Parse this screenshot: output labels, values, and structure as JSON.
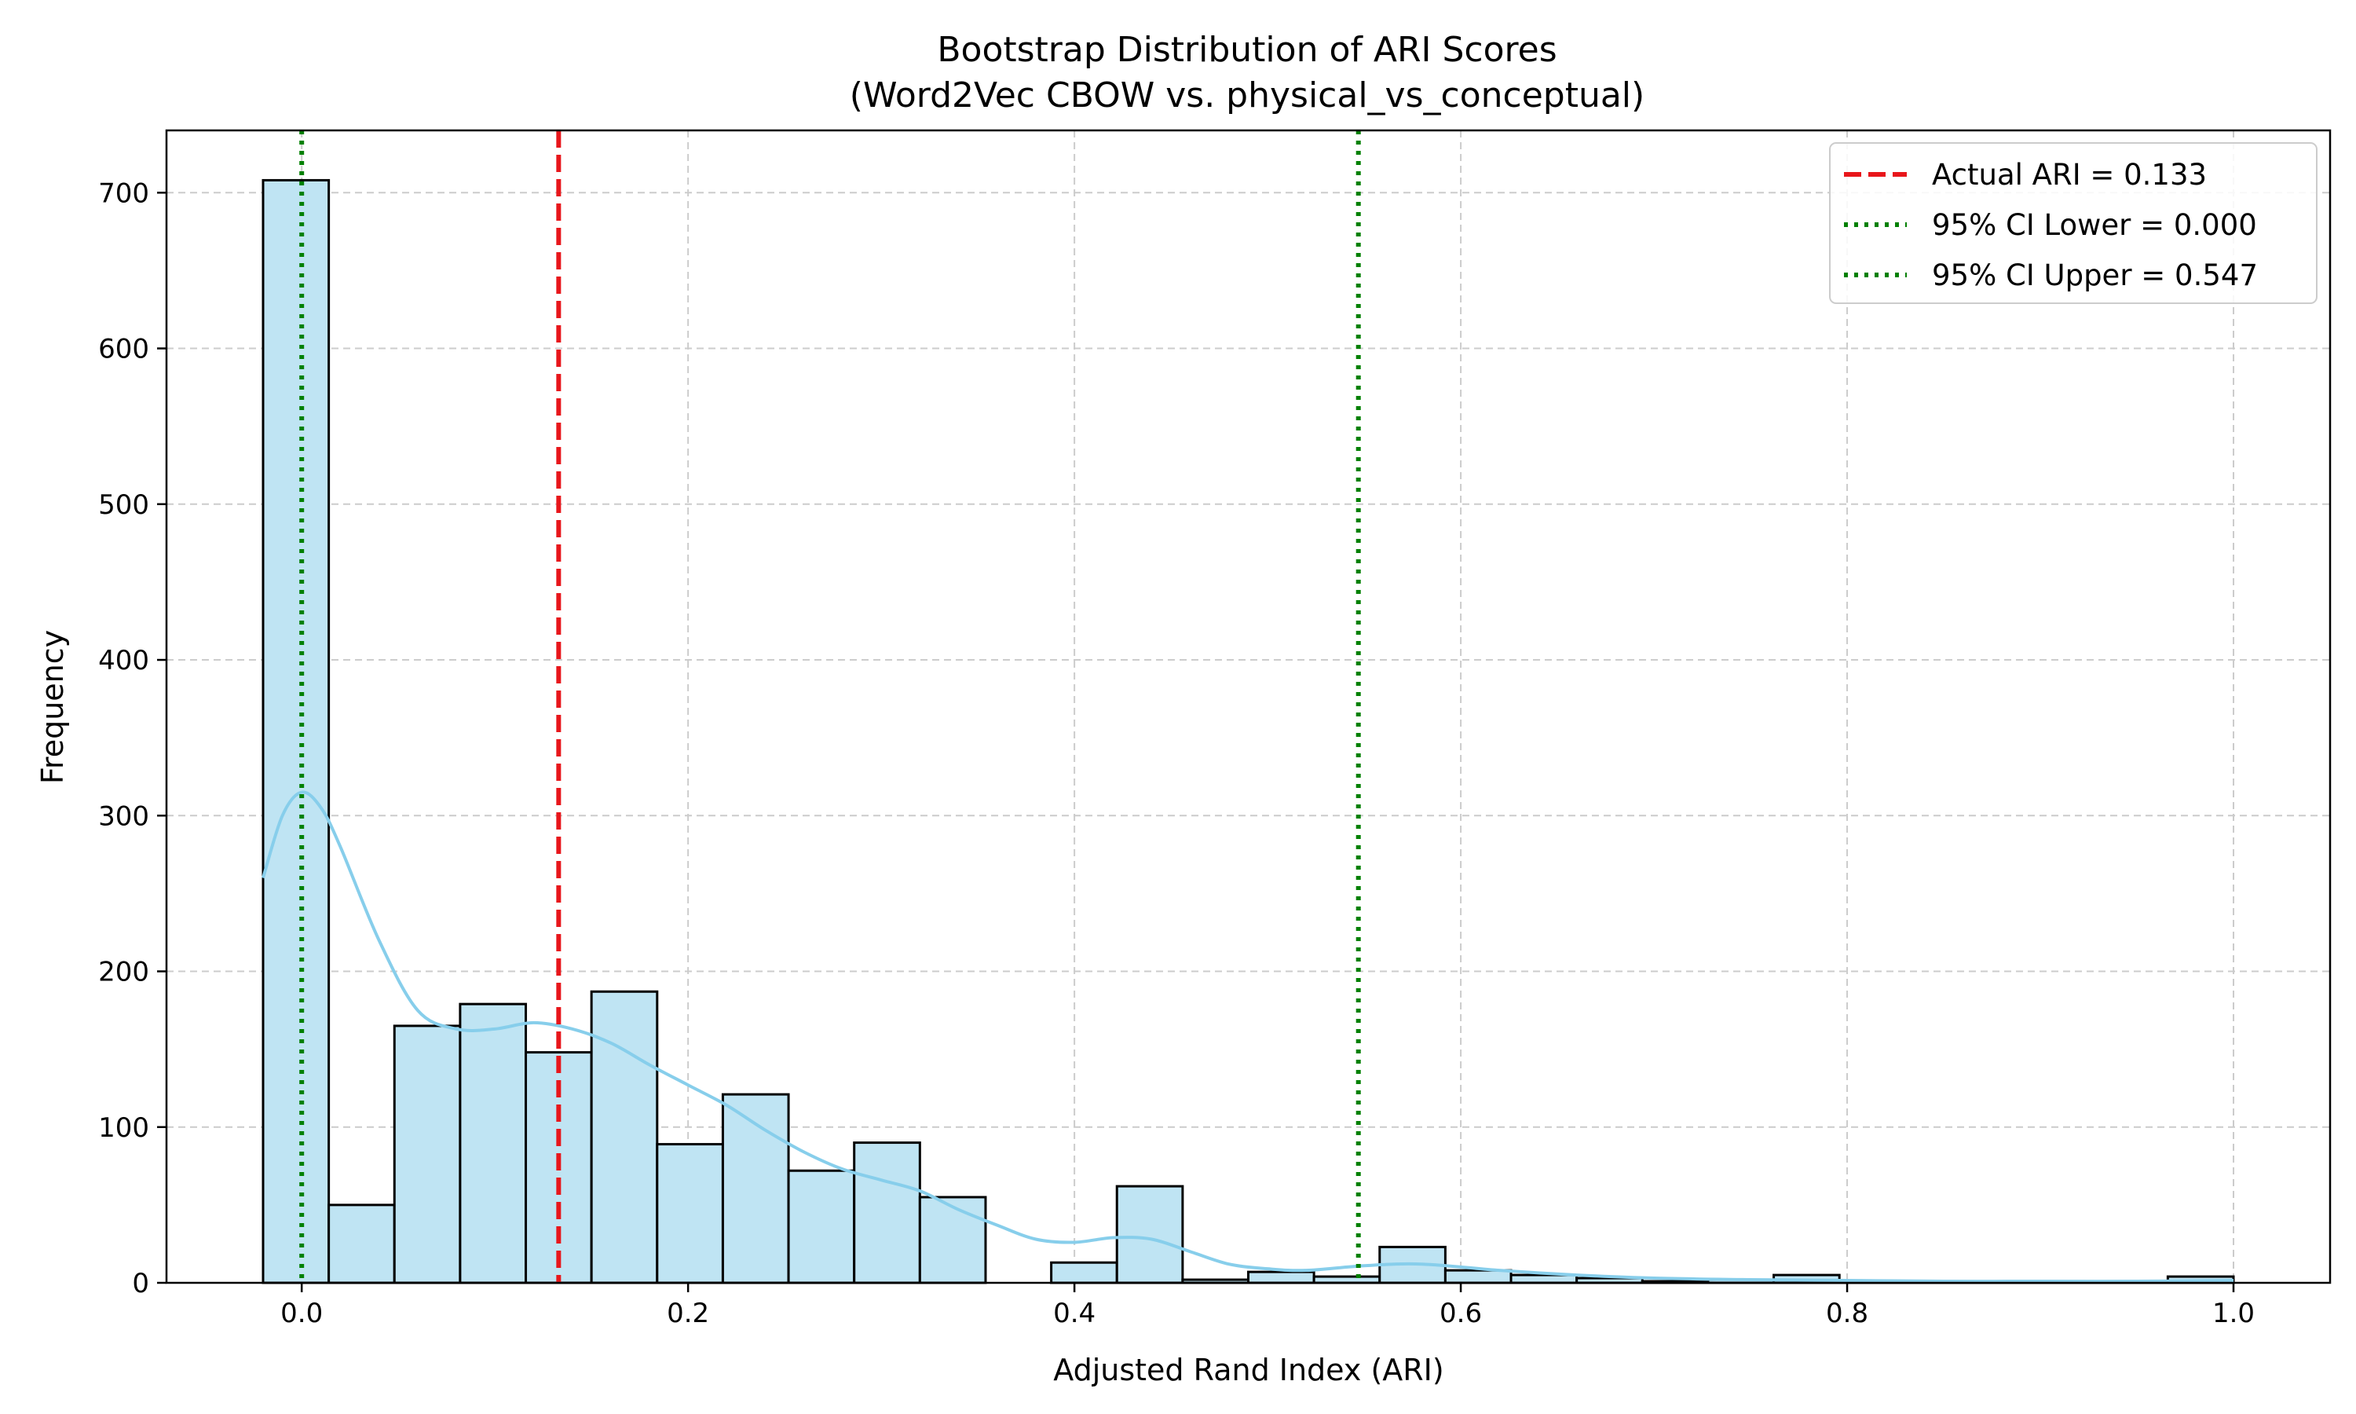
{
  "chart_data": {
    "type": "bar",
    "title_line1": "Bootstrap Distribution of ARI Scores",
    "title_line2": "(Word2Vec CBOW vs. physical_vs_conceptual)",
    "xlabel": "Adjusted Rand Index (ARI)",
    "ylabel": "Frequency",
    "xlim": [
      -0.07,
      1.05
    ],
    "ylim": [
      0,
      740
    ],
    "xticks": [
      0.0,
      0.2,
      0.4,
      0.6,
      0.8,
      1.0
    ],
    "xtick_labels": [
      "0.0",
      "0.2",
      "0.4",
      "0.6",
      "0.8",
      "1.0"
    ],
    "yticks": [
      0,
      100,
      200,
      300,
      400,
      500,
      600,
      700
    ],
    "ytick_labels": [
      "0",
      "100",
      "200",
      "300",
      "400",
      "500",
      "600",
      "700"
    ],
    "grid": true,
    "legend_position": "top-right",
    "bins": {
      "start": -0.02,
      "width": 0.034,
      "counts": [
        708,
        50,
        165,
        179,
        148,
        187,
        89,
        121,
        72,
        90,
        55,
        0,
        13,
        62,
        2,
        7,
        4,
        23,
        8,
        5,
        3,
        1,
        2,
        5,
        1,
        1,
        1,
        1,
        1,
        4
      ]
    },
    "kde": {
      "x": [
        -0.02,
        -0.01,
        0.0,
        0.01,
        0.02,
        0.04,
        0.06,
        0.08,
        0.1,
        0.12,
        0.14,
        0.16,
        0.18,
        0.2,
        0.22,
        0.24,
        0.26,
        0.28,
        0.3,
        0.32,
        0.34,
        0.36,
        0.38,
        0.4,
        0.42,
        0.44,
        0.46,
        0.48,
        0.5,
        0.52,
        0.55,
        0.58,
        0.62,
        0.66,
        0.7,
        0.75,
        0.8,
        0.85,
        0.9,
        0.95,
        1.0
      ],
      "y": [
        260,
        300,
        315,
        305,
        280,
        220,
        175,
        163,
        163,
        167,
        163,
        154,
        140,
        127,
        114,
        98,
        84,
        73,
        66,
        59,
        47,
        37,
        28,
        26,
        29,
        28,
        20,
        12,
        9,
        8,
        11,
        12,
        8,
        5,
        3,
        2,
        1.5,
        1,
        1,
        1,
        1.5
      ],
      "color": "#87ceeb"
    },
    "bar_fill": "#bfe4f3",
    "bar_edge": "#000000",
    "vlines": [
      {
        "x": 0.133,
        "label": "Actual ARI = 0.133",
        "color": "#e8161b",
        "style": "dashed"
      },
      {
        "x": 0.0,
        "label": "95% CI Lower = 0.000",
        "color": "#008000",
        "style": "dotted"
      },
      {
        "x": 0.547,
        "label": "95% CI Upper = 0.547",
        "color": "#008000",
        "style": "dotted"
      }
    ]
  }
}
